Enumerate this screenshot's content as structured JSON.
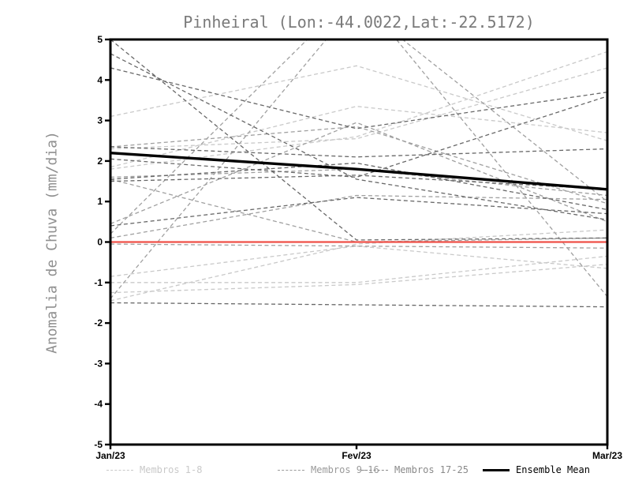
{
  "chart_data": {
    "type": "line",
    "title": "Pinheiral (Lon:-44.0022,Lat:-22.5172)",
    "xlabel": "",
    "ylabel": "Anomalia de Chuva (mm/dia)",
    "ylim": [
      -5,
      5
    ],
    "y_ticks": [
      5,
      4,
      3,
      2,
      1,
      0,
      -1,
      -2,
      -3,
      -4,
      -5
    ],
    "x_tick_labels": [
      "Jan/23",
      "Fev/23",
      "Mar/23"
    ],
    "grid": "off",
    "legend_position": "bottom",
    "series_groups": [
      {
        "name": "Membros 1-8",
        "color": "#c9c9c9",
        "style": "dashed",
        "members": [
          [
            3.1,
            4.35,
            2.5
          ],
          [
            2.3,
            2.55,
            4.3
          ],
          [
            1.8,
            2.6,
            4.7
          ],
          [
            1.85,
            3.35,
            2.7
          ],
          [
            -0.85,
            -0.1,
            -0.65
          ],
          [
            -1.0,
            -1.0,
            -0.35
          ],
          [
            -1.25,
            -1.05,
            -0.55
          ],
          [
            -1.45,
            -0.05,
            0.3
          ]
        ]
      },
      {
        "name": "Membros 9-16",
        "color": "#a0a0a0",
        "style": "dashed",
        "members": [
          [
            2.35,
            2.85,
            0.95
          ],
          [
            1.6,
            1.8,
            1.15
          ],
          [
            0.45,
            2.95,
            0.5
          ],
          [
            0.2,
            6.2,
            -1.35
          ],
          [
            0.1,
            1.15,
            1.05
          ],
          [
            -0.05,
            -0.1,
            -0.15
          ],
          [
            1.55,
            0.0,
            0.1
          ],
          [
            -1.4,
            5.9,
            1.0
          ]
        ]
      },
      {
        "name": "Membros 17-25",
        "color": "#686868",
        "style": "dashed",
        "members": [
          [
            5.0,
            0.05,
            0.1
          ],
          [
            4.65,
            1.55,
            0.55
          ],
          [
            4.3,
            2.8,
            3.7
          ],
          [
            2.05,
            1.6,
            3.6
          ],
          [
            2.35,
            2.1,
            2.3
          ],
          [
            1.55,
            1.95,
            0.8
          ],
          [
            1.5,
            1.65,
            1.3
          ],
          [
            0.4,
            1.1,
            0.7
          ],
          [
            -1.5,
            -1.55,
            -1.6
          ]
        ]
      }
    ],
    "zero_line": {
      "color": "#ef5048",
      "values": [
        0,
        0,
        0
      ]
    },
    "ensemble_mean": {
      "name": "Ensemble Mean",
      "color": "#000000",
      "values": [
        2.2,
        1.8,
        1.3
      ]
    }
  },
  "legend": {
    "items": [
      {
        "label": "Membros 1-8",
        "color": "#c9c9c9",
        "style": "dashed"
      },
      {
        "label": "Membros 9-16",
        "color": "#9a9a9a",
        "style": "dashed"
      },
      {
        "label": "Membros 17-25",
        "color": "#8a8a8a",
        "style": "dashed"
      },
      {
        "label": "Ensemble Mean",
        "color": "#000000",
        "style": "solid"
      }
    ]
  }
}
